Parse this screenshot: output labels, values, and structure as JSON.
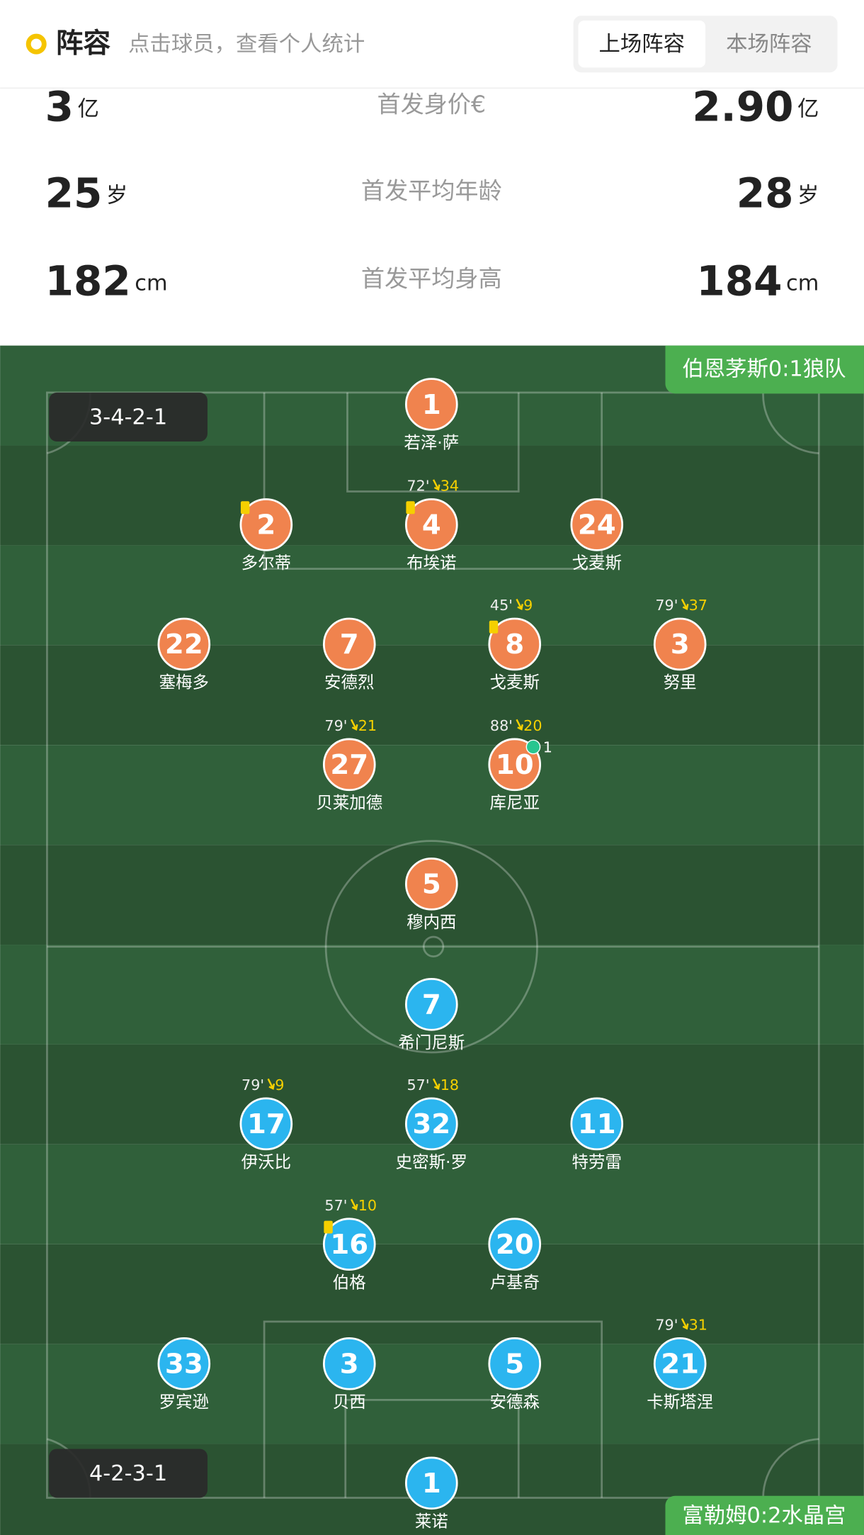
{
  "header": {
    "title": "阵容",
    "hint": "点击球员，查看个人统计",
    "tabs": [
      "上场阵容",
      "本场阵容"
    ]
  },
  "stats": [
    {
      "left": "3",
      "left_unit": "亿",
      "label": "首发身价€",
      "right": "2.90",
      "right_unit": "亿"
    },
    {
      "left": "25",
      "left_unit": "岁",
      "label": "首发平均年龄",
      "right": "28",
      "right_unit": "岁"
    },
    {
      "left": "182",
      "left_unit": "cm",
      "label": "首发平均身高",
      "right": "184",
      "right_unit": "cm"
    }
  ],
  "teams": [
    {
      "match": "伯恩茅斯0:1狼队",
      "formation": "3-4-2-1",
      "color": "#f0834e",
      "players": [
        {
          "number": 1,
          "name": "若泽·萨"
        },
        {
          "number": 2,
          "name": "多尔蒂",
          "yellow_card": true
        },
        {
          "number": 4,
          "name": "布埃诺",
          "sub_minute": "72'",
          "sub_number": 34,
          "yellow_card": true
        },
        {
          "number": 24,
          "name": "戈麦斯"
        },
        {
          "number": 22,
          "name": "塞梅多"
        },
        {
          "number": 7,
          "name": "安德烈"
        },
        {
          "number": 8,
          "name": "戈麦斯",
          "sub_minute": "45'",
          "sub_number": 9,
          "yellow_card": true
        },
        {
          "number": 3,
          "name": "努里",
          "sub_minute": "79'",
          "sub_number": 37
        },
        {
          "number": 27,
          "name": "贝莱加德",
          "sub_minute": "79'",
          "sub_number": 21
        },
        {
          "number": 10,
          "name": "库尼亚",
          "sub_minute": "88'",
          "sub_number": 20,
          "goals": 1
        },
        {
          "number": 5,
          "name": "穆内西"
        }
      ]
    },
    {
      "match": "富勒姆0:2水晶宫",
      "formation": "4-2-3-1",
      "color": "#2bb5ef",
      "players": [
        {
          "number": 7,
          "name": "希门尼斯"
        },
        {
          "number": 17,
          "name": "伊沃比",
          "sub_minute": "79'",
          "sub_number": 9
        },
        {
          "number": 32,
          "name": "史密斯·罗",
          "sub_minute": "57'",
          "sub_number": 18
        },
        {
          "number": 11,
          "name": "特劳雷"
        },
        {
          "number": 16,
          "name": "伯格",
          "sub_minute": "57'",
          "sub_number": 10,
          "yellow_card": true
        },
        {
          "number": 20,
          "name": "卢基奇"
        },
        {
          "number": 33,
          "name": "罗宾逊"
        },
        {
          "number": 3,
          "name": "贝西"
        },
        {
          "number": 5,
          "name": "安德森"
        },
        {
          "number": 21,
          "name": "卡斯塔涅",
          "sub_minute": "79'",
          "sub_number": 31
        },
        {
          "number": 1,
          "name": "莱诺"
        }
      ]
    }
  ]
}
